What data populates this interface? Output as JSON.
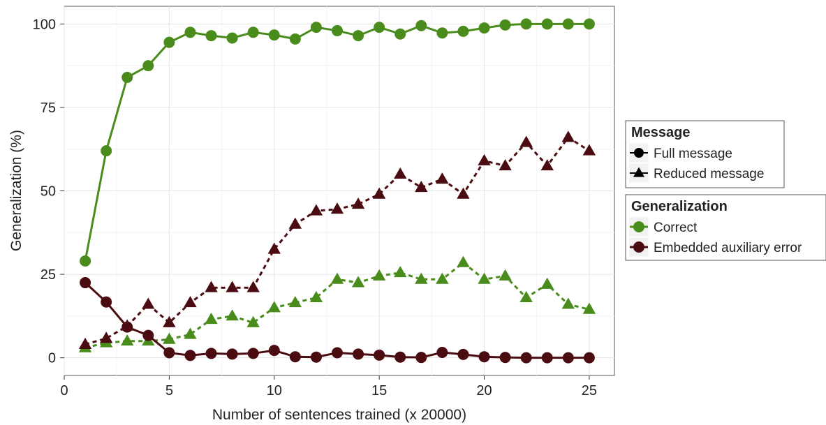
{
  "chart_data": {
    "type": "line",
    "xlabel": "Number of sentences trained (x 20000)",
    "ylabel": "Generalization (%)",
    "xlim": [
      0,
      26.2
    ],
    "ylim": [
      -5.3,
      105.3
    ],
    "x_ticks": [
      0,
      5,
      10,
      15,
      20,
      25
    ],
    "y_ticks": [
      0,
      25,
      50,
      75,
      100
    ],
    "grid": true,
    "legend_position": "right",
    "x": [
      1,
      2,
      3,
      4,
      5,
      6,
      7,
      8,
      9,
      10,
      11,
      12,
      13,
      14,
      15,
      16,
      17,
      18,
      19,
      20,
      21,
      22,
      23,
      24,
      25
    ],
    "series": [
      {
        "name": "Correct / Full message",
        "generalization": "Correct",
        "message": "Full message",
        "values": [
          29,
          62,
          84,
          87.5,
          94.5,
          97.5,
          96.5,
          95.8,
          97.5,
          96.7,
          95.5,
          99,
          98,
          96.5,
          99,
          97,
          99.5,
          97.3,
          97.8,
          98.8,
          99.7,
          100,
          100,
          100,
          100
        ]
      },
      {
        "name": "Correct / Reduced message",
        "generalization": "Correct",
        "message": "Reduced message",
        "values": [
          3,
          4.5,
          5,
          5,
          5.5,
          7,
          11.5,
          12.5,
          10.5,
          15,
          16.5,
          18,
          23.5,
          22.5,
          24.5,
          25.5,
          23.5,
          23.5,
          28.5,
          23.5,
          24.5,
          18,
          22,
          16,
          14.5
        ]
      },
      {
        "name": "Embedded auxiliary error / Full message",
        "generalization": "Embedded auxiliary error",
        "message": "Full message",
        "values": [
          22.5,
          16.7,
          9.2,
          6.7,
          1.5,
          0.7,
          1.3,
          1.1,
          1.3,
          2.2,
          0.3,
          0.2,
          1.5,
          1.1,
          0.8,
          0.2,
          0.1,
          1.6,
          1,
          0.3,
          0.1,
          0,
          0,
          0,
          0
        ]
      },
      {
        "name": "Embedded auxiliary error / Reduced message",
        "generalization": "Embedded auxiliary error",
        "message": "Reduced message",
        "values": [
          4,
          5.8,
          9.5,
          16,
          10.5,
          16.5,
          21,
          21,
          21,
          32.5,
          40,
          44,
          44.5,
          46,
          49,
          55,
          51,
          53.5,
          49,
          59,
          57.5,
          64.5,
          57.5,
          66,
          62
        ]
      }
    ],
    "legends": [
      {
        "title": "Message",
        "items": [
          {
            "label": "Full message",
            "shape": "circle"
          },
          {
            "label": "Reduced message",
            "shape": "triangle"
          }
        ]
      },
      {
        "title": "Generalization",
        "items": [
          {
            "label": "Correct",
            "color": "#4a8c1c"
          },
          {
            "label": "Embedded auxiliary error",
            "color": "#4a0c10"
          }
        ]
      }
    ]
  },
  "colors": {
    "correct": "#4a8c1c",
    "error": "#4a0c10",
    "legend_key_symbol": "#000000"
  }
}
